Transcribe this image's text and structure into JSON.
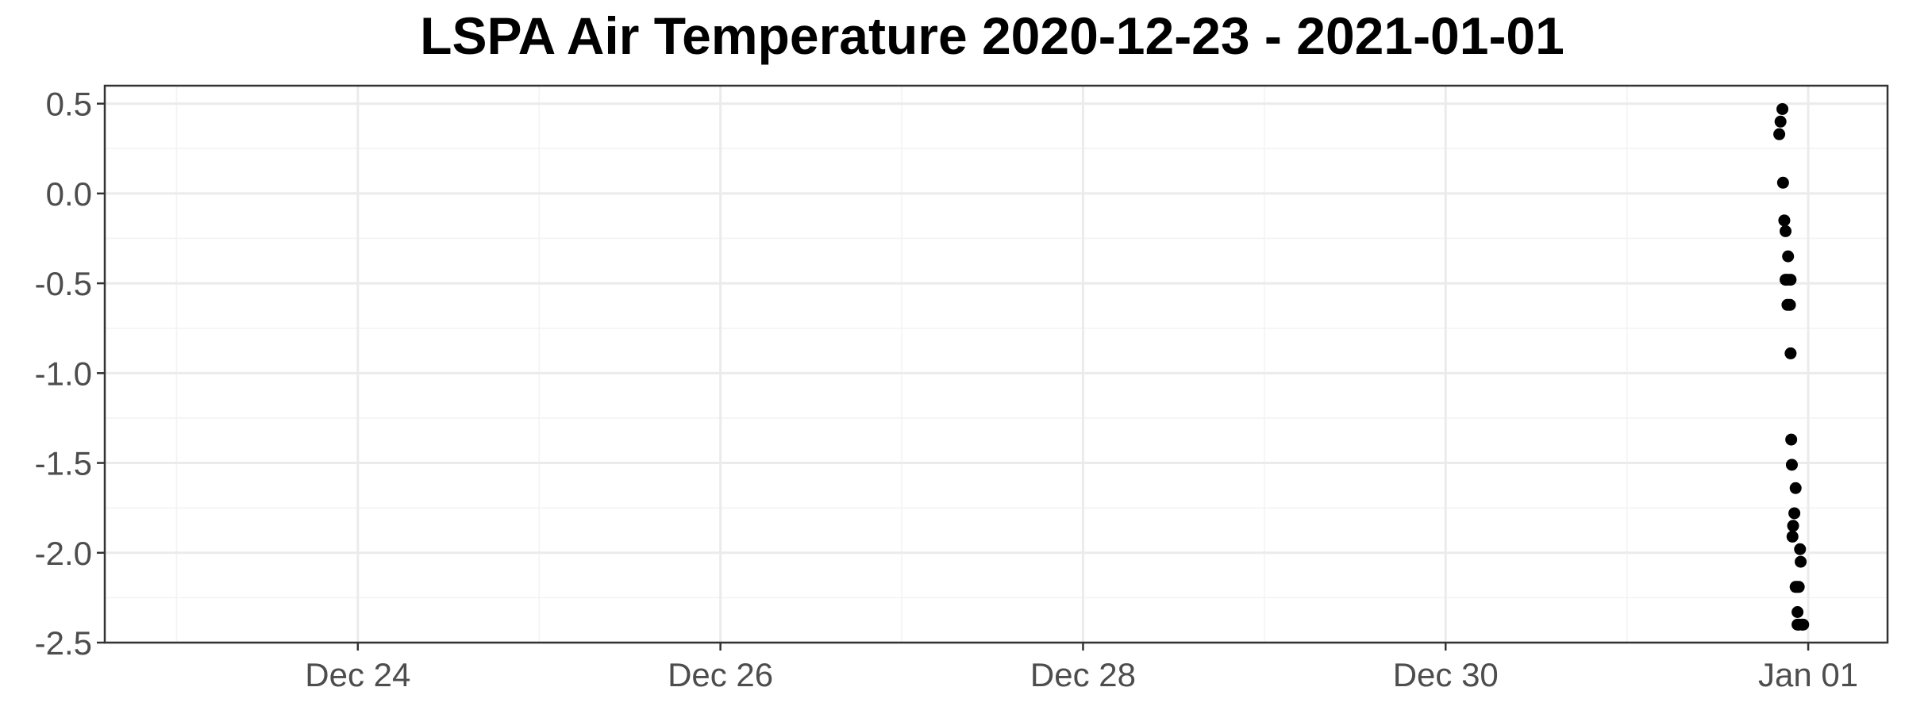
{
  "chart_data": {
    "type": "scatter",
    "title": "LSPA Air Temperature 2020-12-23 - 2021-01-01",
    "xlabel": "",
    "ylabel": "",
    "xlim": [
      "2020-12-22T14:30",
      "2021-01-01T10:30"
    ],
    "ylim": [
      -2.5,
      0.6
    ],
    "x_ticks": [
      {
        "value": "2020-12-24",
        "label": "Dec 24"
      },
      {
        "value": "2020-12-26",
        "label": "Dec 26"
      },
      {
        "value": "2020-12-28",
        "label": "Dec 28"
      },
      {
        "value": "2020-12-30",
        "label": "Dec 30"
      },
      {
        "value": "2021-01-01",
        "label": "Jan 01"
      }
    ],
    "x_minor_ticks": [
      "2020-12-23",
      "2020-12-25",
      "2020-12-27",
      "2020-12-29",
      "2020-12-31"
    ],
    "y_ticks": [
      {
        "value": 0.5,
        "label": "0.5"
      },
      {
        "value": 0.0,
        "label": "0.0"
      },
      {
        "value": -0.5,
        "label": "-0.5"
      },
      {
        "value": -1.0,
        "label": "-1.0"
      },
      {
        "value": -1.5,
        "label": "-1.5"
      },
      {
        "value": -2.0,
        "label": "-2.0"
      },
      {
        "value": -2.5,
        "label": "-2.5"
      }
    ],
    "y_minor_ticks": [
      0.25,
      -0.25,
      -0.75,
      -1.25,
      -1.75,
      -2.25
    ],
    "grid": true,
    "legend": "none",
    "point_color": "#000000",
    "points": [
      {
        "x": "2020-12-31T20:10",
        "y": 0.33
      },
      {
        "x": "2020-12-31T20:20",
        "y": 0.4
      },
      {
        "x": "2020-12-31T20:35",
        "y": 0.47
      },
      {
        "x": "2020-12-31T20:40",
        "y": 0.06
      },
      {
        "x": "2020-12-31T20:50",
        "y": -0.15
      },
      {
        "x": "2020-12-31T21:00",
        "y": -0.21
      },
      {
        "x": "2020-12-31T21:00",
        "y": -0.48
      },
      {
        "x": "2020-12-31T21:15",
        "y": -0.48
      },
      {
        "x": "2020-12-31T21:15",
        "y": -0.62
      },
      {
        "x": "2020-12-31T21:20",
        "y": -0.35
      },
      {
        "x": "2020-12-31T21:35",
        "y": -0.62
      },
      {
        "x": "2020-12-31T21:40",
        "y": -0.48
      },
      {
        "x": "2020-12-31T21:40",
        "y": -0.89
      },
      {
        "x": "2020-12-31T21:45",
        "y": -1.37
      },
      {
        "x": "2020-12-31T21:50",
        "y": -1.51
      },
      {
        "x": "2020-12-31T21:55",
        "y": -1.91
      },
      {
        "x": "2020-12-31T22:00",
        "y": -1.85
      },
      {
        "x": "2020-12-31T22:10",
        "y": -1.78
      },
      {
        "x": "2020-12-31T22:20",
        "y": -1.64
      },
      {
        "x": "2020-12-31T22:20",
        "y": -2.19
      },
      {
        "x": "2020-12-31T22:30",
        "y": -2.19
      },
      {
        "x": "2020-12-31T22:35",
        "y": -2.33
      },
      {
        "x": "2020-12-31T22:35",
        "y": -2.4
      },
      {
        "x": "2020-12-31T22:45",
        "y": -2.19
      },
      {
        "x": "2020-12-31T22:45",
        "y": -2.4
      },
      {
        "x": "2020-12-31T22:55",
        "y": -1.98
      },
      {
        "x": "2020-12-31T23:00",
        "y": -2.05
      },
      {
        "x": "2020-12-31T23:10",
        "y": -2.4
      },
      {
        "x": "2020-12-31T23:20",
        "y": -2.4
      }
    ]
  }
}
